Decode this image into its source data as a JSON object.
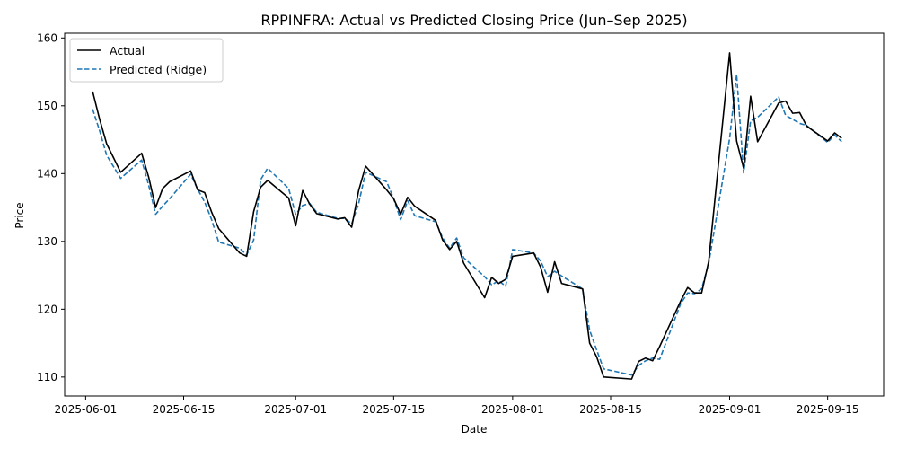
{
  "chart_data": {
    "type": "line",
    "title": "RPPINFRA: Actual vs Predicted Closing Price (Jun–Sep 2025)",
    "xlabel": "Date",
    "ylabel": "Price",
    "x_tick_labels": [
      "2025-06-01",
      "2025-06-15",
      "2025-07-01",
      "2025-07-15",
      "2025-08-01",
      "2025-08-15",
      "2025-09-01",
      "2025-09-15"
    ],
    "x_tick_dates": [
      "2025-06-01",
      "2025-06-15",
      "2025-07-01",
      "2025-07-15",
      "2025-08-01",
      "2025-08-15",
      "2025-09-01",
      "2025-09-15"
    ],
    "y_ticks": [
      110,
      120,
      130,
      140,
      150,
      160
    ],
    "xlim": [
      "2025-05-29",
      "2025-09-23"
    ],
    "ylim": [
      107.2,
      160.7
    ],
    "grid": false,
    "legend_position": "upper-left",
    "dates": [
      "2025-06-02",
      "2025-06-03",
      "2025-06-04",
      "2025-06-06",
      "2025-06-09",
      "2025-06-10",
      "2025-06-11",
      "2025-06-12",
      "2025-06-13",
      "2025-06-16",
      "2025-06-17",
      "2025-06-18",
      "2025-06-19",
      "2025-06-20",
      "2025-06-23",
      "2025-06-24",
      "2025-06-25",
      "2025-06-26",
      "2025-06-27",
      "2025-06-30",
      "2025-07-01",
      "2025-07-02",
      "2025-07-03",
      "2025-07-04",
      "2025-07-07",
      "2025-07-08",
      "2025-07-09",
      "2025-07-10",
      "2025-07-11",
      "2025-07-14",
      "2025-07-15",
      "2025-07-16",
      "2025-07-17",
      "2025-07-18",
      "2025-07-21",
      "2025-07-22",
      "2025-07-23",
      "2025-07-24",
      "2025-07-25",
      "2025-07-28",
      "2025-07-29",
      "2025-07-30",
      "2025-07-31",
      "2025-08-01",
      "2025-08-04",
      "2025-08-05",
      "2025-08-06",
      "2025-08-07",
      "2025-08-08",
      "2025-08-11",
      "2025-08-12",
      "2025-08-13",
      "2025-08-14",
      "2025-08-18",
      "2025-08-19",
      "2025-08-20",
      "2025-08-21",
      "2025-08-22",
      "2025-08-25",
      "2025-08-26",
      "2025-08-27",
      "2025-08-28",
      "2025-08-29",
      "2025-09-01",
      "2025-09-02",
      "2025-09-03",
      "2025-09-04",
      "2025-09-05",
      "2025-09-08",
      "2025-09-09",
      "2025-09-10",
      "2025-09-11",
      "2025-09-12",
      "2025-09-15",
      "2025-09-16",
      "2025-09-17"
    ],
    "series": [
      {
        "name": "Actual",
        "color": "#000000",
        "style": "solid",
        "values": [
          152.1,
          148.0,
          144.4,
          140.2,
          143.0,
          139.5,
          135.0,
          137.8,
          138.8,
          140.4,
          137.6,
          137.2,
          134.3,
          131.9,
          128.3,
          127.8,
          134.4,
          138.0,
          139.0,
          136.4,
          132.3,
          137.5,
          135.5,
          134.1,
          133.3,
          133.5,
          132.1,
          137.5,
          141.1,
          137.6,
          136.3,
          134.0,
          136.5,
          135.2,
          133.1,
          130.2,
          128.8,
          130.0,
          126.8,
          121.7,
          124.7,
          123.8,
          124.4,
          127.8,
          128.3,
          126.2,
          122.5,
          127.0,
          123.8,
          123.0,
          115.0,
          113.0,
          110.0,
          109.7,
          112.3,
          112.8,
          112.4,
          114.5,
          121.2,
          123.2,
          122.4,
          122.4,
          127.0,
          157.8,
          144.8,
          140.8,
          151.4,
          144.7,
          150.4,
          150.7,
          148.9,
          149.0,
          147.0,
          144.8,
          146.0,
          145.2
        ]
      },
      {
        "name": "Predicted (Ridge)",
        "color": "#1f77b4",
        "style": "dashed",
        "values": [
          149.5,
          146.3,
          142.7,
          139.3,
          142.0,
          138.3,
          134.0,
          135.2,
          136.3,
          139.9,
          137.7,
          135.8,
          133.2,
          129.9,
          129.0,
          128.0,
          130.2,
          139.1,
          140.8,
          137.8,
          134.0,
          135.3,
          135.6,
          134.3,
          133.4,
          133.4,
          132.6,
          135.6,
          140.2,
          138.8,
          136.3,
          133.2,
          136.0,
          133.8,
          132.9,
          130.5,
          129.0,
          130.5,
          127.6,
          124.8,
          123.6,
          124.2,
          123.4,
          128.8,
          128.3,
          127.1,
          124.8,
          125.6,
          124.9,
          123.0,
          116.9,
          114.0,
          111.2,
          110.3,
          111.7,
          112.4,
          112.8,
          112.6,
          120.8,
          122.4,
          122.3,
          123.0,
          126.7,
          145.2,
          154.6,
          140.1,
          147.8,
          148.3,
          151.3,
          148.6,
          148.0,
          147.4,
          147.1,
          144.6,
          145.7,
          144.7
        ]
      }
    ]
  }
}
